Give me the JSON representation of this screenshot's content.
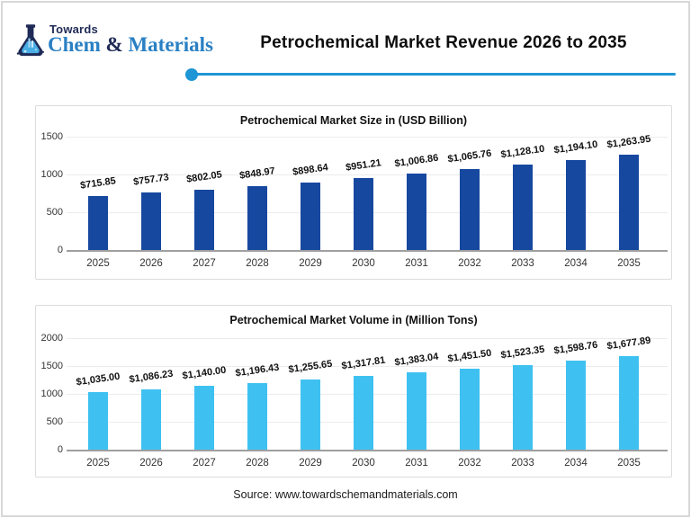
{
  "brand": {
    "name_top": "Towards",
    "name_part1": "Chem",
    "name_amp": "&",
    "name_part2": "Materials",
    "navy": "#1f2a56",
    "blue": "#2a80c4"
  },
  "header": {
    "title": "Petrochemical Market Revenue 2026 to 2035",
    "divider_color": "#1e95d4"
  },
  "footer": {
    "source": "Source: www.towardschemandmaterials.com"
  },
  "chart_data": [
    {
      "type": "bar",
      "title": "Petrochemical Market Size in (USD Billion)",
      "categories": [
        "2025",
        "2026",
        "2027",
        "2028",
        "2029",
        "2030",
        "2031",
        "2032",
        "2033",
        "2034",
        "2035"
      ],
      "values": [
        715.85,
        757.73,
        802.05,
        848.97,
        898.64,
        951.21,
        1006.86,
        1065.76,
        1128.1,
        1194.1,
        1263.95
      ],
      "value_labels": [
        "$715.85",
        "$757.73",
        "$802.05",
        "$848.97",
        "$898.64",
        "$951.21",
        "$1,006.86",
        "$1,065.76",
        "$1,128.10",
        "$1,194.10",
        "$1,263.95"
      ],
      "yticks": [
        0,
        500,
        1000,
        1500
      ],
      "ylim": [
        0,
        1500
      ],
      "bar_color": "#17489f",
      "xlabel": "",
      "ylabel": "",
      "grid": true,
      "legend": "none"
    },
    {
      "type": "bar",
      "title": "Petrochemical Market Volume in (Million Tons)",
      "categories": [
        "2025",
        "2026",
        "2027",
        "2028",
        "2029",
        "2030",
        "2031",
        "2032",
        "2033",
        "2034",
        "2035"
      ],
      "values": [
        1035.0,
        1086.23,
        1140.0,
        1196.43,
        1255.65,
        1317.81,
        1383.04,
        1451.5,
        1523.35,
        1598.76,
        1677.89
      ],
      "value_labels": [
        "$1,035.00",
        "$1,086.23",
        "$1,140.00",
        "$1,196.43",
        "$1,255.65",
        "$1,317.81",
        "$1,383.04",
        "$1,451.50",
        "$1,523.35",
        "$1,598.76",
        "$1,677.89"
      ],
      "yticks": [
        0,
        500,
        1000,
        1500,
        2000
      ],
      "ylim": [
        0,
        2000
      ],
      "bar_color": "#3ec1f1",
      "xlabel": "",
      "ylabel": "",
      "grid": true,
      "legend": "none"
    }
  ]
}
